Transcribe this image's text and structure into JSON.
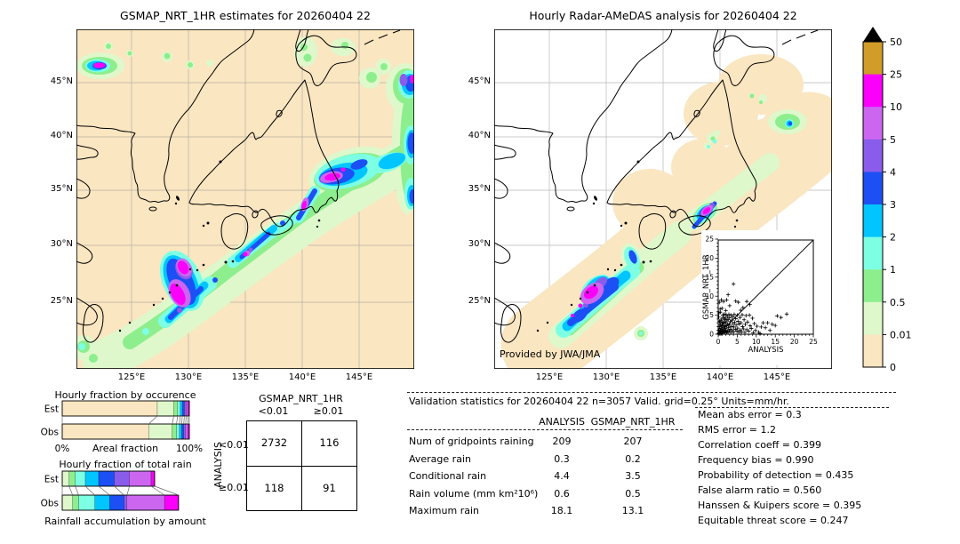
{
  "left_map": {
    "title": "GSMAP_NRT_1HR estimates for 20260404 22",
    "x_ticks": [
      "125°E",
      "130°E",
      "135°E",
      "140°E",
      "145°E"
    ],
    "y_ticks": [
      "45°N",
      "40°N",
      "35°N",
      "30°N",
      "25°N"
    ]
  },
  "right_map": {
    "title": "Hourly Radar-AMeDAS analysis for 20260404 22",
    "x_ticks": [
      "125°E",
      "130°E",
      "135°E",
      "140°E",
      "145°E"
    ],
    "y_ticks": [
      "45°N",
      "40°N",
      "35°N",
      "30°N",
      "25°N"
    ],
    "credit": "Provided by JWA/JMA"
  },
  "palette": {
    "peach": "#FAE6C1",
    "palegreen": "#DEF8CB",
    "green": "#8DEE8D",
    "cyan": "#7DFFE4",
    "skyblue": "#00C5FF",
    "blue": "#1C50F5",
    "purple": "#8A5CEB",
    "orchid": "#CC66F0",
    "magenta": "#FA00FA",
    "gold": "#D19C28",
    "overflow": "#000000"
  },
  "colorbar": {
    "tick_labels_top_to_bottom": [
      "50",
      "25",
      "10",
      "5",
      "4",
      "3",
      "2",
      "1",
      "0.5",
      "0.01",
      "0"
    ],
    "segment_colors_top_to_bottom": [
      "gold",
      "magenta",
      "orchid",
      "purple",
      "blue",
      "skyblue",
      "cyan",
      "green",
      "palegreen",
      "peach"
    ],
    "overflow_marker": "black-triangle"
  },
  "chart_data": [
    {
      "id": "occurrence",
      "type": "bar",
      "orientation": "horizontal-stacked",
      "title": "Hourly fraction by occurence",
      "xlabel": "Areal fraction",
      "x_axis_labels": [
        "0%",
        "100%"
      ],
      "row_labels": [
        "Est",
        "Obs"
      ],
      "colors": [
        "peach",
        "palegreen",
        "green",
        "cyan",
        "skyblue",
        "blue",
        "purple",
        "orchid",
        "magenta"
      ],
      "est_pct": [
        74.8,
        13.0,
        3.0,
        2.1,
        1.6,
        1.6,
        1.4,
        1.4,
        1.1
      ],
      "obs_pct": [
        68.0,
        18.5,
        3.4,
        2.3,
        1.8,
        1.6,
        1.5,
        1.7,
        1.2
      ]
    },
    {
      "id": "total_rain",
      "type": "bar",
      "orientation": "horizontal-stacked",
      "title": "Hourly fraction of total rain",
      "xlabel": "Rainfall accumulation by amount",
      "row_labels": [
        "Est",
        "Obs"
      ],
      "colors": [
        "palegreen",
        "green",
        "cyan",
        "skyblue",
        "blue",
        "purple",
        "orchid",
        "magenta"
      ],
      "est_pct": [
        5.4,
        4.9,
        7.9,
        10.5,
        12.3,
        11.9,
        17.0,
        2.8
      ],
      "obs_pct": [
        8.2,
        4.7,
        12.8,
        11.7,
        11.2,
        2.3,
        29.6,
        11.0
      ]
    },
    {
      "id": "contingency",
      "type": "table",
      "col_group": "GSMAP_NRT_1HR",
      "row_group": "ANALYSIS",
      "col_labels": [
        "<0.01",
        "≥0.01"
      ],
      "row_labels": [
        "<0.01",
        "≥0.01"
      ],
      "cells": [
        [
          "2732",
          "116"
        ],
        [
          "118",
          "91"
        ]
      ]
    },
    {
      "id": "validation_stats",
      "type": "table",
      "title": "Validation statistics for 20260404 22  n=3057 Valid. grid=0.25° Units=mm/hr.",
      "columns": [
        "ANALYSIS",
        "GSMAP_NRT_1HR"
      ],
      "rows": [
        {
          "label": "Num of gridpoints raining",
          "values": [
            "209",
            "207"
          ]
        },
        {
          "label": "Average rain",
          "values": [
            "0.3",
            "0.2"
          ]
        },
        {
          "label": "Conditional rain",
          "values": [
            "4.4",
            "3.5"
          ]
        },
        {
          "label": "Rain volume (mm km²10⁶)",
          "values": [
            "0.6",
            "0.5"
          ]
        },
        {
          "label": "Maximum rain",
          "values": [
            "18.1",
            "13.1"
          ]
        }
      ]
    },
    {
      "id": "scores",
      "type": "list",
      "items": [
        {
          "label": "Mean abs error",
          "value": "0.3"
        },
        {
          "label": "RMS error",
          "value": "1.2"
        },
        {
          "label": "Correlation coeff",
          "value": "0.399"
        },
        {
          "label": "Frequency bias",
          "value": "0.990"
        },
        {
          "label": "Probability of detection",
          "value": "0.435"
        },
        {
          "label": "False alarm ratio",
          "value": "0.560"
        },
        {
          "label": "Hanssen & Kuipers score",
          "value": "0.395"
        },
        {
          "label": "Equitable threat score",
          "value": "0.247"
        }
      ]
    },
    {
      "id": "inset_scatter",
      "type": "scatter",
      "xlabel": "ANALYSIS",
      "ylabel": "GSMAP_NRT_1HR",
      "xlim": [
        0,
        25
      ],
      "ylim": [
        0,
        25
      ],
      "ticks": [
        0,
        5,
        10,
        15,
        20,
        25
      ],
      "diagonal": true,
      "points": [
        [
          0.1,
          0.1
        ],
        [
          0.2,
          0.4
        ],
        [
          0.2,
          1.1
        ],
        [
          0.3,
          0.2
        ],
        [
          0.3,
          2
        ],
        [
          0.4,
          0.7
        ],
        [
          0.4,
          3.1
        ],
        [
          0.5,
          0.1
        ],
        [
          0.5,
          1.5
        ],
        [
          0.6,
          2.5
        ],
        [
          0.6,
          0.5
        ],
        [
          0.7,
          1
        ],
        [
          0.7,
          3.6
        ],
        [
          0.8,
          0.2
        ],
        [
          0.8,
          2.1
        ],
        [
          0.9,
          0.8
        ],
        [
          0.9,
          4
        ],
        [
          1,
          1.4
        ],
        [
          1,
          3
        ],
        [
          1.1,
          0.4
        ],
        [
          1.1,
          2.3
        ],
        [
          1.2,
          5
        ],
        [
          1.2,
          0.9
        ],
        [
          1.3,
          2.9
        ],
        [
          1.3,
          0.5
        ],
        [
          1.4,
          4.4
        ],
        [
          1.4,
          1.7
        ],
        [
          1.5,
          3.2
        ],
        [
          1.5,
          0.7
        ],
        [
          1.6,
          2.3
        ],
        [
          1.6,
          5.3
        ],
        [
          1.7,
          1.2
        ],
        [
          1.7,
          3.9
        ],
        [
          1.8,
          0.5
        ],
        [
          1.8,
          2
        ],
        [
          1.9,
          4.2
        ],
        [
          1.9,
          1.5
        ],
        [
          2,
          3
        ],
        [
          2,
          0.8
        ],
        [
          2.1,
          5.1
        ],
        [
          2.2,
          2.2
        ],
        [
          2.2,
          0.4
        ],
        [
          2.3,
          3.5
        ],
        [
          2.4,
          1
        ],
        [
          2.4,
          4.7
        ],
        [
          2.5,
          2.6
        ],
        [
          2.6,
          0.6
        ],
        [
          2.6,
          3.9
        ],
        [
          2.7,
          1.8
        ],
        [
          2.8,
          5.2
        ],
        [
          2.9,
          0.9
        ],
        [
          3,
          2.4
        ],
        [
          3,
          4.3
        ],
        [
          3.1,
          1.3
        ],
        [
          3.2,
          3.3
        ],
        [
          3.3,
          0.5
        ],
        [
          3.4,
          5
        ],
        [
          3.5,
          2
        ],
        [
          3.6,
          3.7
        ],
        [
          3.7,
          1
        ],
        [
          3.8,
          4.6
        ],
        [
          3.9,
          2.8
        ],
        [
          4,
          0.6
        ],
        [
          4.1,
          1.9
        ],
        [
          4.2,
          5.2
        ],
        [
          4.3,
          3.1
        ],
        [
          4.5,
          1.3
        ],
        [
          4.6,
          4.1
        ],
        [
          4.7,
          2.4
        ],
        [
          4.9,
          0.8
        ],
        [
          5,
          5
        ],
        [
          5.1,
          1.6
        ],
        [
          5.2,
          3.4
        ],
        [
          5.4,
          0.5
        ],
        [
          5.5,
          2.7
        ],
        [
          5.7,
          4.4
        ],
        [
          5.8,
          1.1
        ],
        [
          6,
          3
        ],
        [
          6.1,
          0.6
        ],
        [
          6.3,
          5.1
        ],
        [
          6.4,
          2
        ],
        [
          6.6,
          1.4
        ],
        [
          6.8,
          3.8
        ],
        [
          7,
          0.5
        ],
        [
          7.1,
          2.6
        ],
        [
          7.3,
          4.9
        ],
        [
          7.5,
          1.2
        ],
        [
          7.7,
          3.2
        ],
        [
          8,
          0.8
        ],
        [
          8.2,
          5
        ],
        [
          8.4,
          2.2
        ],
        [
          8.7,
          1.5
        ],
        [
          9,
          4.2
        ],
        [
          9.2,
          0.4
        ],
        [
          9.5,
          2.8
        ],
        [
          9.8,
          1
        ],
        [
          10.2,
          2.1
        ],
        [
          10.6,
          0.5
        ],
        [
          11,
          0.2
        ],
        [
          11.3,
          1.9
        ],
        [
          11.8,
          3
        ],
        [
          12.4,
          1.7
        ],
        [
          13,
          3
        ],
        [
          13.6,
          1
        ],
        [
          14.2,
          2.6
        ],
        [
          15,
          2.3
        ],
        [
          15.5,
          4.8
        ],
        [
          16.5,
          4.4
        ],
        [
          18,
          5.3
        ],
        [
          0.3,
          8.4
        ],
        [
          0.5,
          6.6
        ],
        [
          0.8,
          9
        ],
        [
          1.4,
          8.6
        ],
        [
          2.2,
          9
        ],
        [
          2.6,
          10.4
        ],
        [
          3,
          7.5
        ],
        [
          4,
          13.2
        ],
        [
          4.6,
          8.7
        ],
        [
          5.3,
          8.4
        ],
        [
          6.5,
          7
        ],
        [
          7.5,
          8.6
        ],
        [
          2,
          6.2
        ],
        [
          0.2,
          5.6
        ],
        [
          1,
          6.8
        ],
        [
          5.9,
          6.3
        ],
        [
          8.3,
          7.8
        ],
        [
          0.15,
          4.5
        ],
        [
          0.35,
          3.4
        ],
        [
          0.55,
          5.8
        ]
      ]
    }
  ]
}
